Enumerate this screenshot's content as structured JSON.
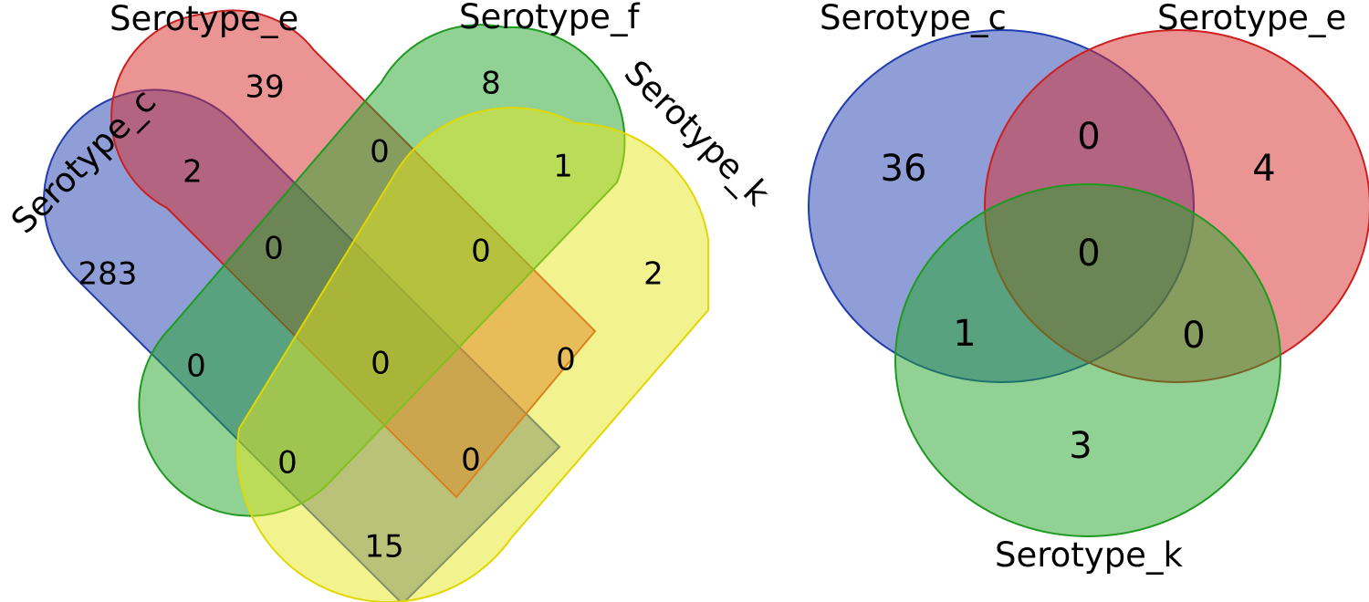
{
  "venn4": {
    "sets": {
      "c": {
        "label": "Serotype_c",
        "fill": "#1f3db0",
        "stroke": "#1f3db0"
      },
      "e": {
        "label": "Serotype_e",
        "fill": "#d82a2a",
        "stroke": "#cc2020"
      },
      "f": {
        "label": "Serotype_f",
        "fill": "#23a52a",
        "stroke": "#1e9a20"
      },
      "k": {
        "label": "Serotype_k",
        "fill": "#e6e61e",
        "stroke": "#e0d800"
      }
    },
    "regions": {
      "e_only": "39",
      "f_only": "8",
      "c_e": "2",
      "e_f": "0",
      "f_k": "1",
      "c_only": "283",
      "c_e_f": "0",
      "e_f_k": "0",
      "k_only": "2",
      "c_f": "0",
      "all": "0",
      "e_k": "0",
      "c_f_k": "0",
      "c_e_k": "0",
      "c_k": "15"
    }
  },
  "venn3": {
    "sets": {
      "c": {
        "label": "Serotype_c",
        "fill": "#1f3db0",
        "stroke": "#1f3db0"
      },
      "e": {
        "label": "Serotype_e",
        "fill": "#d82a2a",
        "stroke": "#cc2020"
      },
      "k": {
        "label": "Serotype_k",
        "fill": "#23a52a",
        "stroke": "#1e9a20"
      }
    },
    "regions": {
      "c_only": "36",
      "c_e": "0",
      "e_only": "4",
      "all": "0",
      "c_k": "1",
      "e_k": "0",
      "k_only": "3"
    }
  }
}
